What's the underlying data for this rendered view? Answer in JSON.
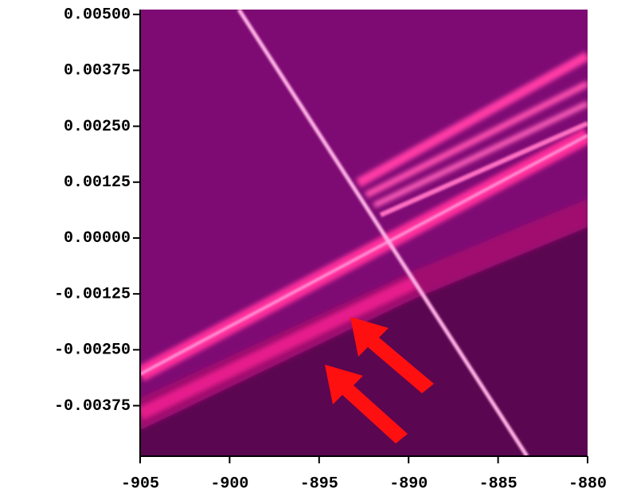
{
  "chart_data": {
    "type": "image",
    "xlim": [
      -905,
      -880
    ],
    "xticks": [
      -905,
      -900,
      -895,
      -890,
      -885,
      -880
    ],
    "ylim": [
      -0.00488,
      0.00511
    ],
    "yticks": [
      {
        "value": 0.005,
        "label": "0.00500"
      },
      {
        "value": 0.00375,
        "label": "0.00375"
      },
      {
        "value": 0.0025,
        "label": "0.00250"
      },
      {
        "value": 0.00125,
        "label": "0.00125"
      },
      {
        "value": 0,
        "label": "0.00000"
      },
      {
        "value": -0.00125,
        "label": "-0.00125"
      },
      {
        "value": -0.0025,
        "label": "-0.00250"
      },
      {
        "value": -0.00375,
        "label": "-0.00375"
      }
    ]
  }
}
